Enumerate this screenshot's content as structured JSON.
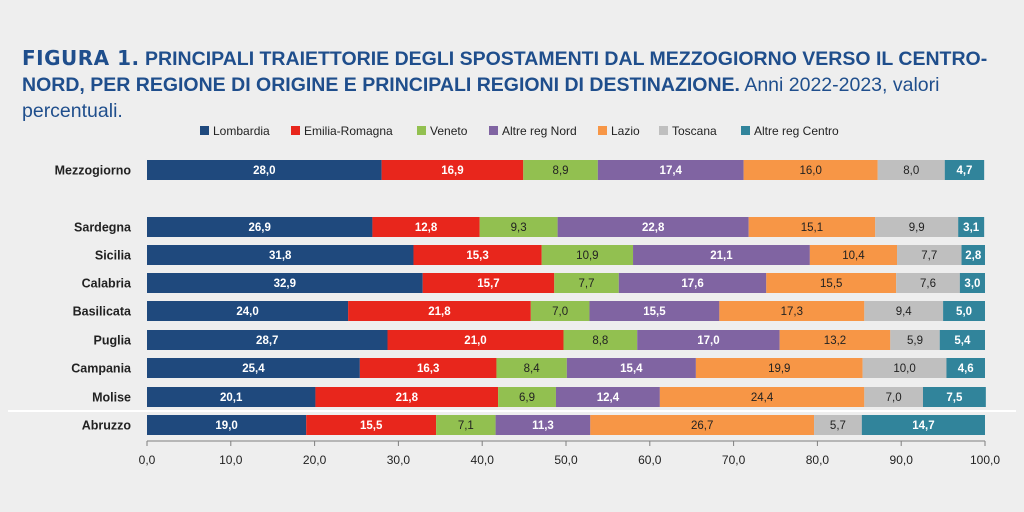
{
  "title": {
    "fig_label": "FIGURA 1.",
    "main": "PRINCIPALI TRAIETTORIE DEGLI SPOSTAMENTI DAL MEZZOGIORNO VERSO IL CENTRO-NORD, PER REGIONE DI ORIGINE E PRINCIPALI REGIONI DI DESTINAZIONE.",
    "subtitle": "Anni 2022-2023, valori percentuali."
  },
  "chart_data": {
    "type": "bar",
    "orientation": "horizontal",
    "stacked": true,
    "categories": [
      "Mezzogiorno",
      "Sardegna",
      "Sicilia",
      "Calabria",
      "Basilicata",
      "Puglia",
      "Campania",
      "Molise",
      "Abruzzo"
    ],
    "series": [
      {
        "name": "Lombardia",
        "color": "#1f497d",
        "label_color": "#ffffff",
        "label_bold": true,
        "values": [
          28.0,
          26.9,
          31.8,
          32.9,
          24.0,
          28.7,
          25.4,
          20.1,
          19.0
        ],
        "labels": [
          "28,0",
          "26,9",
          "31,8",
          "32,9",
          "24,0",
          "28,7",
          "25,4",
          "20,1",
          "19,0"
        ]
      },
      {
        "name": "Emilia-Romagna",
        "color": "#e8261c",
        "label_color": "#ffffff",
        "label_bold": true,
        "values": [
          16.9,
          12.8,
          15.3,
          15.7,
          21.8,
          21.0,
          16.3,
          21.8,
          15.5
        ],
        "labels": [
          "16,9",
          "12,8",
          "15,3",
          "15,7",
          "21,8",
          "21,0",
          "16,3",
          "21,8",
          "15,5"
        ]
      },
      {
        "name": "Veneto",
        "color": "#92c050",
        "label_color": "#222222",
        "label_bold": false,
        "values": [
          8.9,
          9.3,
          10.9,
          7.7,
          7.0,
          8.8,
          8.4,
          6.9,
          7.1
        ],
        "labels": [
          "8,9",
          "9,3",
          "10,9",
          "7,7",
          "7,0",
          "8,8",
          "8,4",
          "6,9",
          "7,1"
        ]
      },
      {
        "name": "Altre reg Nord",
        "color": "#8064a2",
        "label_color": "#ffffff",
        "label_bold": true,
        "values": [
          17.4,
          22.8,
          21.1,
          17.6,
          15.5,
          17.0,
          15.4,
          12.4,
          11.3
        ],
        "labels": [
          "17,4",
          "22,8",
          "21,1",
          "17,6",
          "15,5",
          "17,0",
          "15,4",
          "12,4",
          "11,3"
        ]
      },
      {
        "name": "Lazio",
        "color": "#f79646",
        "label_color": "#222222",
        "label_bold": false,
        "values": [
          16.0,
          15.1,
          10.4,
          15.5,
          17.3,
          13.2,
          19.9,
          24.4,
          26.7
        ],
        "labels": [
          "16,0",
          "15,1",
          "10,4",
          "15,5",
          "17,3",
          "13,2",
          "19,9",
          "24,4",
          "26,7"
        ]
      },
      {
        "name": "Toscana",
        "color": "#bfbfbf",
        "label_color": "#222222",
        "label_bold": false,
        "values": [
          8.0,
          9.9,
          7.7,
          7.6,
          9.4,
          5.9,
          10.0,
          7.0,
          5.7
        ],
        "labels": [
          "8,0",
          "9,9",
          "7,7",
          "7,6",
          "9,4",
          "5,9",
          "10,0",
          "7,0",
          "5,7"
        ]
      },
      {
        "name": "Altre reg Centro",
        "color": "#31849b",
        "label_color": "#ffffff",
        "label_bold": true,
        "values": [
          4.7,
          3.1,
          2.8,
          3.0,
          5.0,
          5.4,
          4.6,
          7.5,
          14.7
        ],
        "labels": [
          "4,7",
          "3,1",
          "2,8",
          "3,0",
          "5,0",
          "5,4",
          "4,6",
          "7,5",
          "14,7"
        ]
      }
    ],
    "xlim": [
      0,
      100
    ],
    "xticks": [
      "0,0",
      "10,0",
      "20,0",
      "30,0",
      "40,0",
      "50,0",
      "60,0",
      "70,0",
      "80,0",
      "90,0",
      "100,0"
    ],
    "legend_position": "top",
    "grid": false
  }
}
